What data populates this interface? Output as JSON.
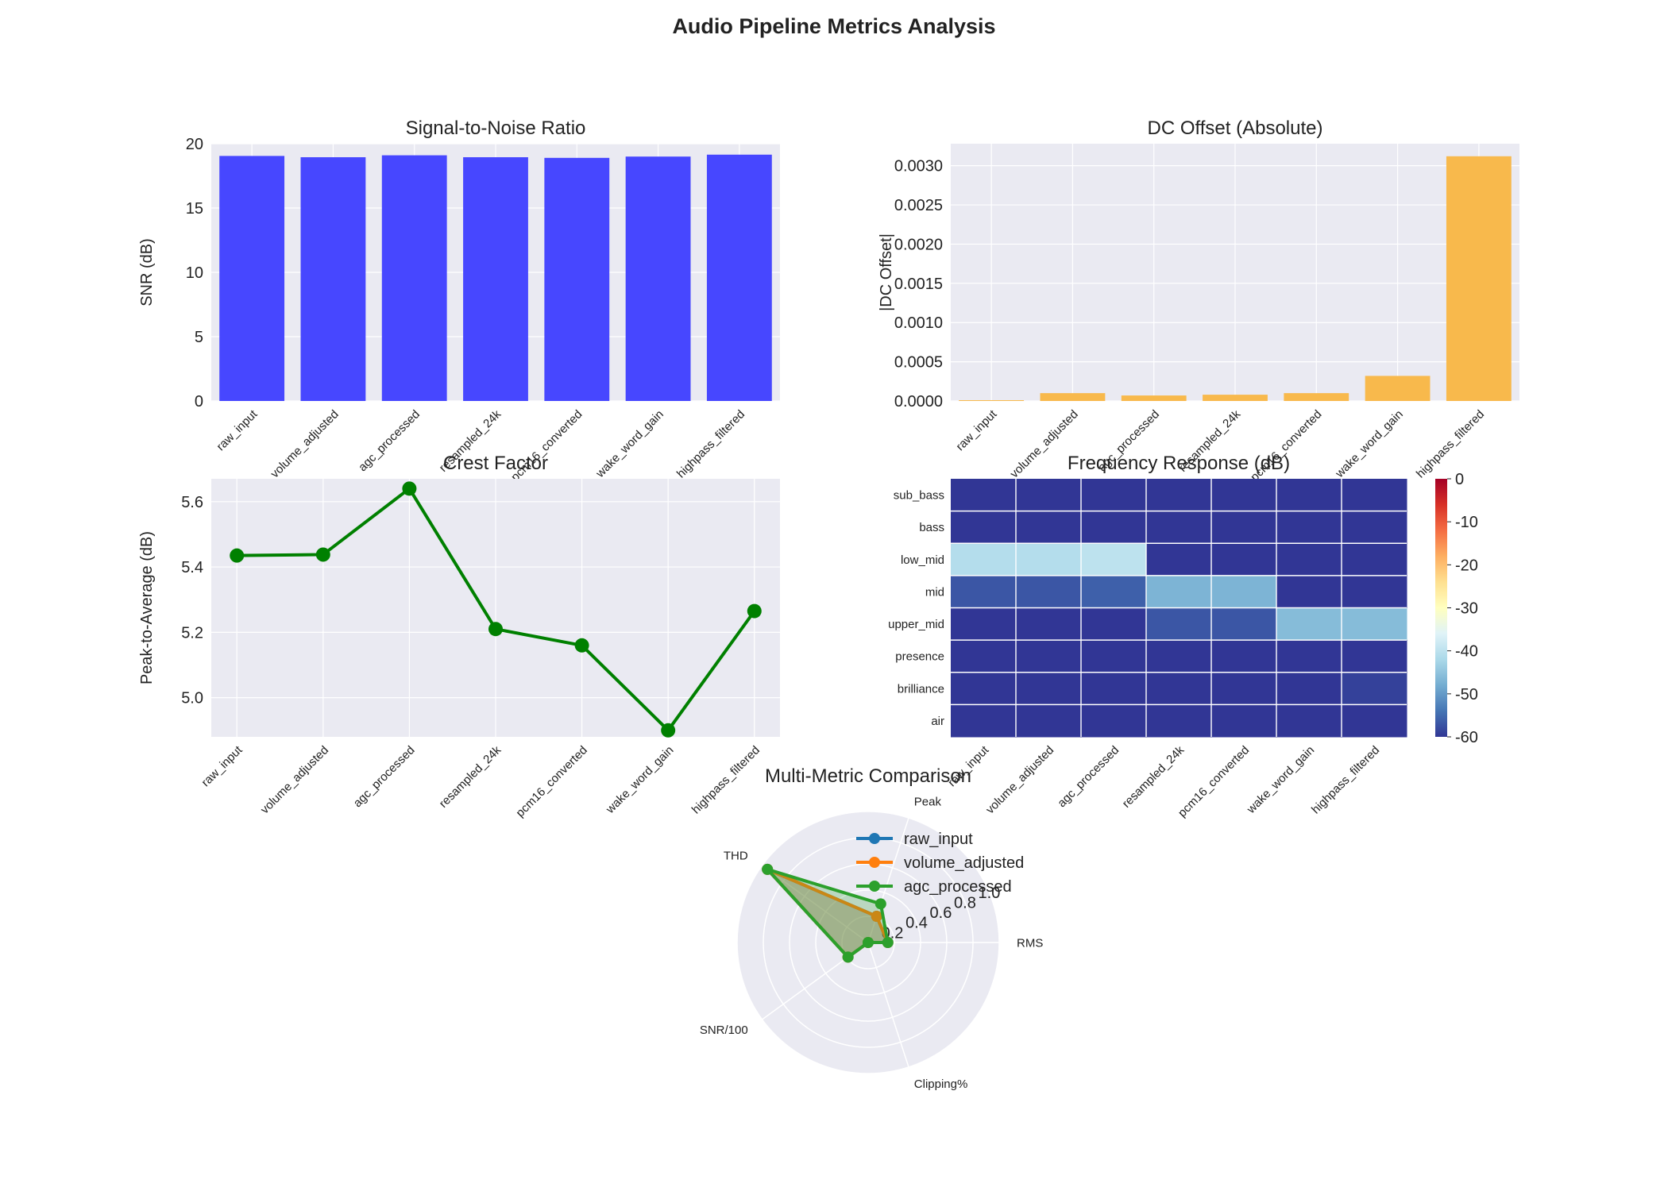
{
  "figure_title": "Audio Pipeline Metrics Analysis",
  "stages": [
    "raw_input",
    "volume_adjusted",
    "agc_processed",
    "resampled_24k",
    "pcm16_converted",
    "wake_word_gain",
    "highpass_filtered"
  ],
  "colors": {
    "snr_bar": "#4747ff",
    "dc_bar": "#f8b94c",
    "crest_line": "#008000",
    "panel_bg": "#eaeaf2",
    "grid": "#ffffff",
    "radar_raw": "#1f77b4",
    "radar_volume": "#ff7f0e",
    "radar_agc": "#2ca02c"
  },
  "chart_data": [
    {
      "id": "snr",
      "type": "bar",
      "title": "Signal-to-Noise Ratio",
      "xlabel": "",
      "ylabel": "SNR (dB)",
      "categories": [
        "raw_input",
        "volume_adjusted",
        "agc_processed",
        "resampled_24k",
        "pcm16_converted",
        "wake_word_gain",
        "highpass_filtered"
      ],
      "values": [
        19.05,
        18.95,
        19.1,
        18.95,
        18.9,
        19.0,
        19.15
      ],
      "ylim": [
        0,
        20
      ],
      "yticks": [
        "0",
        "5",
        "10",
        "15",
        "20"
      ],
      "grid": true
    },
    {
      "id": "dc",
      "type": "bar",
      "title": "DC Offset (Absolute)",
      "xlabel": "",
      "ylabel": "|DC Offset|",
      "categories": [
        "raw_input",
        "volume_adjusted",
        "agc_processed",
        "resampled_24k",
        "pcm16_converted",
        "wake_word_gain",
        "highpass_filtered"
      ],
      "values": [
        1e-05,
        0.0001,
        7e-05,
        8e-05,
        0.0001,
        0.00032,
        0.00312
      ],
      "ylim": [
        0,
        0.00328
      ],
      "yticks": [
        "0.0000",
        "0.0005",
        "0.0010",
        "0.0015",
        "0.0020",
        "0.0025",
        "0.0030"
      ],
      "grid": true
    },
    {
      "id": "crest",
      "type": "line",
      "title": "Crest Factor",
      "xlabel": "",
      "ylabel": "Peak-to-Average (dB)",
      "categories": [
        "raw_input",
        "volume_adjusted",
        "agc_processed",
        "resampled_24k",
        "pcm16_converted",
        "wake_word_gain",
        "highpass_filtered"
      ],
      "values": [
        5.435,
        5.438,
        5.64,
        5.21,
        5.16,
        4.9,
        5.265
      ],
      "ylim": [
        4.88,
        5.67
      ],
      "yticks": [
        "5.0",
        "5.2",
        "5.4",
        "5.6"
      ],
      "grid": true
    },
    {
      "id": "freq",
      "type": "heatmap",
      "title": "Frequency Response (dB)",
      "x": [
        "raw_input",
        "volume_adjusted",
        "agc_processed",
        "resampled_24k",
        "pcm16_converted",
        "wake_word_gain",
        "highpass_filtered"
      ],
      "y": [
        "sub_bass",
        "bass",
        "low_mid",
        "mid",
        "upper_mid",
        "presence",
        "brilliance",
        "air"
      ],
      "values": [
        [
          -60,
          -60,
          -60,
          -60,
          -60,
          -60,
          -60
        ],
        [
          -60,
          -60,
          -60,
          -60,
          -60,
          -60,
          -60
        ],
        [
          -41,
          -41,
          -40,
          -60,
          -60,
          -60,
          -60
        ],
        [
          -57,
          -57,
          -56,
          -47,
          -47,
          -60,
          -60
        ],
        [
          -60,
          -60,
          -60,
          -57,
          -57,
          -46,
          -46
        ],
        [
          -60,
          -60,
          -60,
          -60,
          -60,
          -60,
          -60
        ],
        [
          -60,
          -60,
          -60,
          -60,
          -60,
          -60,
          -59
        ],
        [
          -60,
          -60,
          -60,
          -60,
          -60,
          -60,
          -60
        ]
      ],
      "colorbar_range": [
        -60,
        0
      ],
      "colorbar_ticks": [
        "0",
        "-10",
        "-20",
        "-30",
        "-40",
        "-50",
        "-60"
      ],
      "colormap": "RdYlBu_r"
    },
    {
      "id": "radar",
      "type": "radar",
      "title": "Multi-Metric Comparison",
      "axes": [
        "RMS",
        "Peak",
        "THD",
        "SNR/100",
        "Clipping%"
      ],
      "rticks": [
        "0.2",
        "0.4",
        "0.6",
        "0.8",
        "1.0"
      ],
      "rmax": 1.0,
      "legend_position": "upper right",
      "series": [
        {
          "name": "raw_input",
          "values": [
            0.15,
            0.21,
            0.95,
            0.19,
            0.0
          ]
        },
        {
          "name": "volume_adjusted",
          "values": [
            0.15,
            0.21,
            0.95,
            0.19,
            0.0
          ]
        },
        {
          "name": "agc_processed",
          "values": [
            0.15,
            0.31,
            0.95,
            0.19,
            0.0
          ]
        }
      ]
    }
  ]
}
